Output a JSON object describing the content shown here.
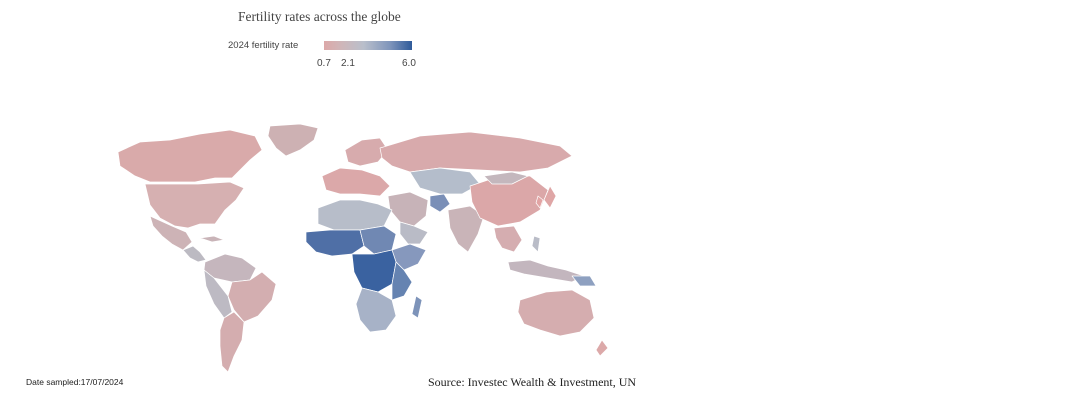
{
  "title": "Fertility rates across the globe",
  "legend": {
    "label": "2024 fertility rate",
    "min_label": "0.7",
    "mid_label": "2.1",
    "max_label": "6.0",
    "colors": {
      "low": "#dca8a8",
      "mid": "#b9bfcb",
      "high": "#2f5b9a"
    }
  },
  "footer": {
    "date_sampled": "Date sampled:17/07/2024",
    "source": "Source: Investec Wealth & Investment, UN"
  }
}
